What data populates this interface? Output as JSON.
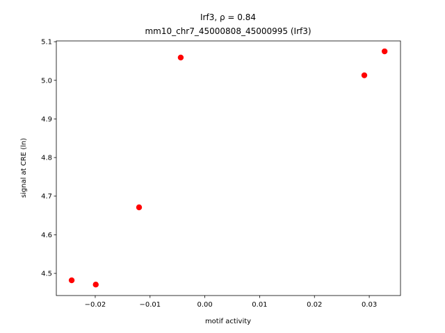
{
  "chart_data": {
    "type": "scatter",
    "title": "Irf3, ρ = 0.84",
    "subtitle": "mm10_chr7_45000808_45000995 (Irf3)",
    "x_label": "motif activity",
    "y_label": "signal at CRE (ln)",
    "x": [
      -0.0243,
      -0.0199,
      -0.012,
      -0.0044,
      0.0291,
      0.0328
    ],
    "values": [
      4.482,
      4.471,
      4.671,
      5.059,
      5.013,
      5.075
    ],
    "color": "#ff0000",
    "xlim": [
      -0.0271,
      0.0357
    ],
    "ylim": [
      4.4426,
      5.102
    ],
    "xticks": [
      {
        "value": -0.02,
        "label": "−0.02"
      },
      {
        "value": -0.01,
        "label": "−0.01"
      },
      {
        "value": 0,
        "label": "0.00"
      },
      0.01,
      0.02,
      0.03
    ],
    "yticks": [
      4.5,
      4.6,
      4.7,
      4.8,
      4.9,
      {
        "value": 5,
        "label": "5.0"
      },
      5.1
    ]
  }
}
